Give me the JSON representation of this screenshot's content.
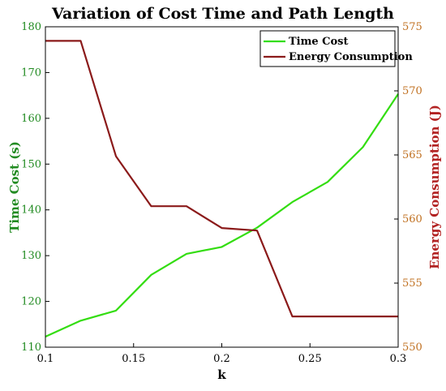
{
  "chart_data": {
    "type": "line",
    "title": "Variation of Cost Time and Path Length",
    "xlabel": "k",
    "ylabel_left": "Time Cost  (s)",
    "ylabel_right": "Energy Consumption  (J)",
    "x": [
      0.1,
      0.12,
      0.14,
      0.16,
      0.18,
      0.2,
      0.22,
      0.24,
      0.26,
      0.28,
      0.3
    ],
    "xlim": [
      0.1,
      0.3
    ],
    "xticks": [
      "0.1",
      "0.15",
      "0.2",
      "0.25",
      "0.3"
    ],
    "ylim_left": [
      110,
      180
    ],
    "yticks_left": [
      "110",
      "120",
      "130",
      "140",
      "150",
      "160",
      "170",
      "180"
    ],
    "ylim_right": [
      550,
      575
    ],
    "yticks_right": [
      "550",
      "555",
      "560",
      "565",
      "570",
      "575"
    ],
    "grid": false,
    "legend_position": "top-right",
    "series": [
      {
        "name": "Time Cost",
        "axis": "left",
        "color": "#33DD11",
        "values": [
          112.3,
          115.8,
          118.0,
          125.8,
          130.4,
          131.9,
          136.1,
          141.7,
          146.1,
          153.7,
          165.3
        ]
      },
      {
        "name": "Energy Consumption",
        "axis": "right",
        "color": "#8B1A1A",
        "values": [
          573.9,
          573.9,
          564.9,
          561.0,
          561.0,
          559.3,
          559.1,
          552.4,
          552.4,
          552.4,
          552.4
        ]
      }
    ]
  },
  "colors": {
    "left_axis": "#228B22",
    "right_axis": "#C07020",
    "right_label": "#B22222"
  }
}
